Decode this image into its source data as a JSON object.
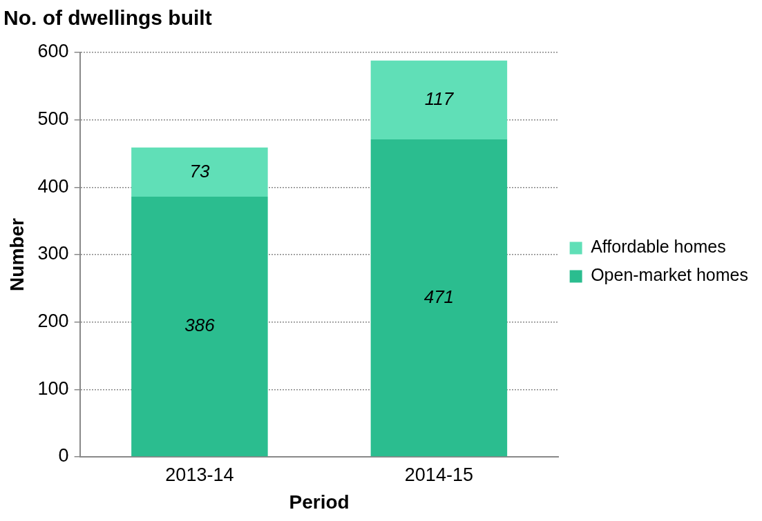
{
  "chart_data": {
    "type": "bar",
    "title": "No. of dwellings built",
    "xlabel": "Period",
    "ylabel": "Number",
    "categories": [
      "2013-14",
      "2014-15"
    ],
    "stacked": true,
    "series": [
      {
        "name": "Open-market homes",
        "color": "#2bbd8f",
        "values": [
          386,
          471
        ]
      },
      {
        "name": "Affordable homes",
        "color": "#60dfb7",
        "values": [
          73,
          117
        ]
      }
    ],
    "ylim": [
      0,
      600
    ],
    "yticks": [
      0,
      100,
      200,
      300,
      400,
      500,
      600
    ],
    "grid": "y",
    "legend": "right",
    "data_labels": true
  }
}
